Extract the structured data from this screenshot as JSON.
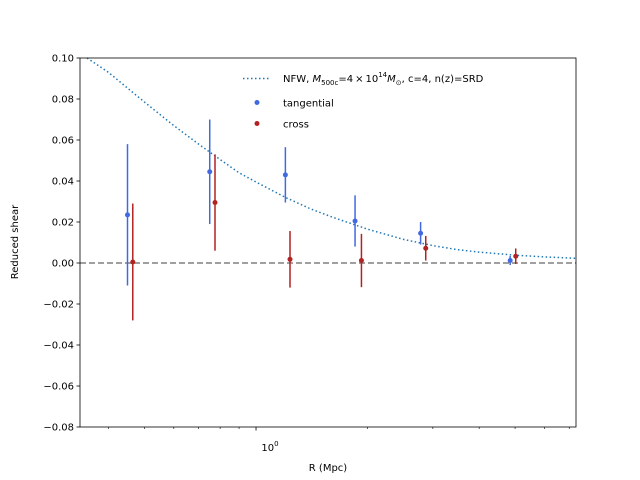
{
  "chart_data": {
    "type": "scatter",
    "title": "",
    "xlabel": "R (Mpc)",
    "ylabel": "Reduced shear",
    "xscale": "log",
    "xlim": [
      0.335,
      7.3
    ],
    "ylim": [
      -0.08,
      0.1
    ],
    "yticks": [
      -0.08,
      -0.06,
      -0.04,
      -0.02,
      0.0,
      0.02,
      0.04,
      0.06,
      0.08,
      0.1
    ],
    "ytick_labels": [
      "−0.08",
      "−0.06",
      "−0.04",
      "−0.02",
      "0.00",
      "0.02",
      "0.04",
      "0.06",
      "0.08",
      "0.10"
    ],
    "xticks": [
      1
    ],
    "xtick_label_base": "10",
    "xtick_label_exp": "0",
    "grid": false,
    "legend_position": "top-right",
    "zero_line": {
      "y": 0.0,
      "color": "#808080",
      "style": "dashed"
    },
    "model": {
      "name_prefix": "NFW, ",
      "name_m": "M",
      "name_m_sub": "500c",
      "name_mid": "=4 × 10",
      "name_exp": "14",
      "name_m2": "M",
      "name_sun": "⊙",
      "name_suffix": ", c=4, n(z)=SRD",
      "color": "#1f77b4",
      "style": "dotted",
      "x": [
        0.35,
        0.4,
        0.5,
        0.6,
        0.7,
        0.8,
        0.9,
        1.0,
        1.2,
        1.4,
        1.6,
        2.0,
        2.5,
        3.0,
        3.5,
        4.0,
        5.0,
        6.0,
        7.3
      ],
      "y": [
        0.1,
        0.093,
        0.0785,
        0.067,
        0.058,
        0.0505,
        0.044,
        0.0395,
        0.032,
        0.0265,
        0.0225,
        0.0165,
        0.0115,
        0.0085,
        0.0065,
        0.0053,
        0.0038,
        0.003,
        0.0023
      ]
    },
    "series": [
      {
        "name": "tangential",
        "color": "#4169e1",
        "x": [
          0.45,
          0.75,
          1.2,
          1.85,
          2.78,
          4.85
        ],
        "y": [
          0.0235,
          0.0445,
          0.043,
          0.0205,
          0.0145,
          0.0012
        ],
        "err": [
          0.0345,
          0.0255,
          0.0135,
          0.0125,
          0.0055,
          0.0022
        ]
      },
      {
        "name": "cross",
        "color": "#b22222",
        "x": [
          0.465,
          0.775,
          1.235,
          1.925,
          2.87,
          5.02
        ],
        "y": [
          0.0005,
          0.0295,
          0.0018,
          0.0012,
          0.0072,
          0.0033
        ],
        "err": [
          0.0285,
          0.0235,
          0.0138,
          0.013,
          0.006,
          0.0038
        ]
      }
    ]
  }
}
